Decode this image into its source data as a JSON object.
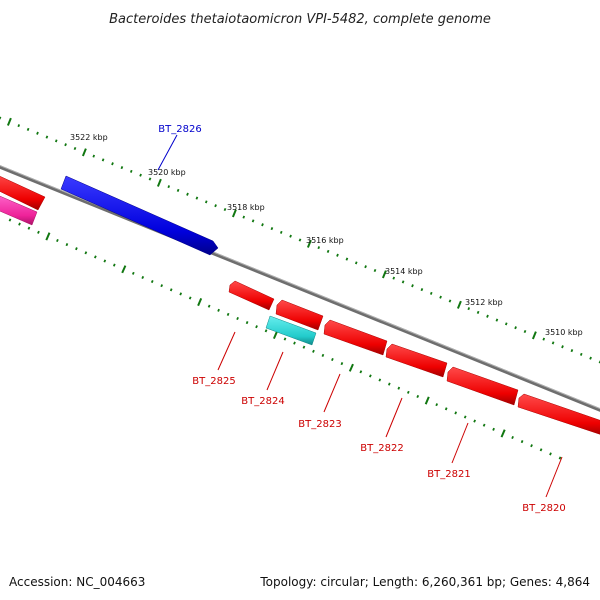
{
  "title": "Bacteroides thetaiotaomicron VPI-5482, complete genome",
  "accession": "Accession: NC_004663",
  "summary": "Topology: circular; Length: 6,260,361 bp; Genes: 4,864",
  "colors": {
    "backbone": "#808080",
    "forward_gene": "#0000ee",
    "forward_label": "#0000cc",
    "reverse_gene": "#ee0000",
    "reverse_label": "#cc0000",
    "other_gene_cyan": "#22cccc",
    "other_gene_pink": "#ee2299",
    "tick": "#117711"
  },
  "scale_labels": [
    "3522 kbp",
    "3520 kbp",
    "3518 kbp",
    "3516 kbp",
    "3514 kbp",
    "3512 kbp",
    "3510 kbp"
  ],
  "genes": [
    {
      "id": "BT_2826",
      "strand": "forward"
    },
    {
      "id": "BT_2825",
      "strand": "reverse"
    },
    {
      "id": "BT_2824",
      "strand": "reverse"
    },
    {
      "id": "BT_2823",
      "strand": "reverse"
    },
    {
      "id": "BT_2822",
      "strand": "reverse"
    },
    {
      "id": "BT_2821",
      "strand": "reverse"
    },
    {
      "id": "BT_2820",
      "strand": "reverse"
    }
  ]
}
